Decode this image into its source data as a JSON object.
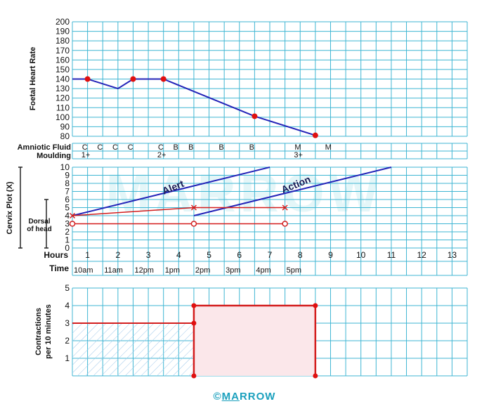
{
  "colors": {
    "grid": "#3fb6d3",
    "blue_line": "#2323b8",
    "red_line": "#d31d1d",
    "red_dot": "#e01010",
    "hatch": "#9fc8ea",
    "fill": "#fbe7ea",
    "brand": "#1aa0bd"
  },
  "watermark": "MARROW",
  "copyright": {
    "symbol": "©",
    "underlined": "MA",
    "rest": "RROW"
  },
  "fhr_panel": {
    "ylabel": "Foetal Heart Rate",
    "yticks": [
      "80",
      "90",
      "100",
      "110",
      "120",
      "130",
      "140",
      "150",
      "160",
      "170",
      "180",
      "190",
      "200"
    ]
  },
  "rows": {
    "amniotic_label": "Amniotic Fluid",
    "moulding_label": "Moulding",
    "amniotic": [
      {
        "x": 1,
        "t": "C"
      },
      {
        "x": 1.5,
        "t": "C"
      },
      {
        "x": 2,
        "t": "C"
      },
      {
        "x": 2.5,
        "t": "C"
      },
      {
        "x": 3.5,
        "t": "C"
      },
      {
        "x": 4,
        "t": "B"
      },
      {
        "x": 4.5,
        "t": "B"
      },
      {
        "x": 5.5,
        "t": "B"
      },
      {
        "x": 6.5,
        "t": "B"
      },
      {
        "x": 8,
        "t": "M"
      },
      {
        "x": 9,
        "t": "M"
      }
    ],
    "moulding": [
      {
        "x": 1,
        "t": "1+"
      },
      {
        "x": 3.5,
        "t": "2+"
      },
      {
        "x": 8,
        "t": "3+"
      }
    ]
  },
  "cervix_panel": {
    "ylabel": "Cervix Plot (X)",
    "dorsal_label_1": "Dorsal",
    "dorsal_label_2": "of head",
    "yticks": [
      "0",
      "1",
      "2",
      "3",
      "4",
      "5",
      "6",
      "7",
      "8",
      "9",
      "10"
    ],
    "alert_label": "Alert",
    "action_label": "Action",
    "hours_label": "Hours",
    "hours": [
      "1",
      "2",
      "3",
      "4",
      "5",
      "6",
      "7",
      "8",
      "9",
      "10",
      "11",
      "12",
      "13"
    ],
    "time_label": "Time",
    "times": [
      "10am",
      "11am",
      "12pm",
      "1pm",
      "2pm",
      "3pm",
      "4pm",
      "5pm"
    ]
  },
  "contractions_panel": {
    "ylabel_1": "Contractions",
    "ylabel_2": "per 10 minutes",
    "yticks": [
      "1",
      "2",
      "3",
      "4",
      "5"
    ]
  },
  "chart_data": [
    {
      "type": "line",
      "title": "",
      "ylabel": "Foetal Heart Rate",
      "ylim": [
        80,
        200
      ],
      "xlim": [
        0.5,
        13.5
      ],
      "grid": true,
      "series": [
        {
          "x": [
            0.5,
            1,
            2,
            2.5,
            3.5,
            6.5,
            8.5
          ],
          "y": [
            140,
            140,
            130,
            140,
            140,
            101,
            81
          ]
        }
      ],
      "markers": {
        "x": [
          1,
          2.5,
          3.5,
          6.5,
          8.5
        ],
        "y": [
          140,
          140,
          140,
          101,
          81
        ]
      }
    },
    {
      "type": "line",
      "title": "",
      "xlabel": "Hours",
      "ylabel": "Cervix Plot (X)",
      "ylim": [
        0,
        10
      ],
      "xlim": [
        0.5,
        13.5
      ],
      "grid": true,
      "series": [
        {
          "name": "Alert",
          "x": [
            0.5,
            7
          ],
          "y": [
            4,
            10
          ]
        },
        {
          "name": "Action",
          "x": [
            4.5,
            11
          ],
          "y": [
            4,
            10
          ]
        }
      ],
      "cervix_plot": {
        "x": [
          0.5,
          4.5,
          7.5
        ],
        "y": [
          4,
          5,
          5
        ]
      },
      "descent_plot": {
        "x": [
          0.5,
          4.5,
          7.5
        ],
        "y": [
          3,
          3,
          3
        ]
      }
    },
    {
      "type": "area",
      "title": "",
      "ylabel": "Contractions per 10 minutes",
      "ylim": [
        0,
        5
      ],
      "xlim": [
        0.5,
        13.5
      ],
      "grid": true,
      "segments": [
        {
          "x_start": 0.5,
          "x_end": 4.5,
          "value": 3,
          "style": "hatched"
        },
        {
          "x_start": 4.5,
          "x_end": 8.5,
          "value": 4,
          "style": "filled"
        }
      ]
    }
  ]
}
